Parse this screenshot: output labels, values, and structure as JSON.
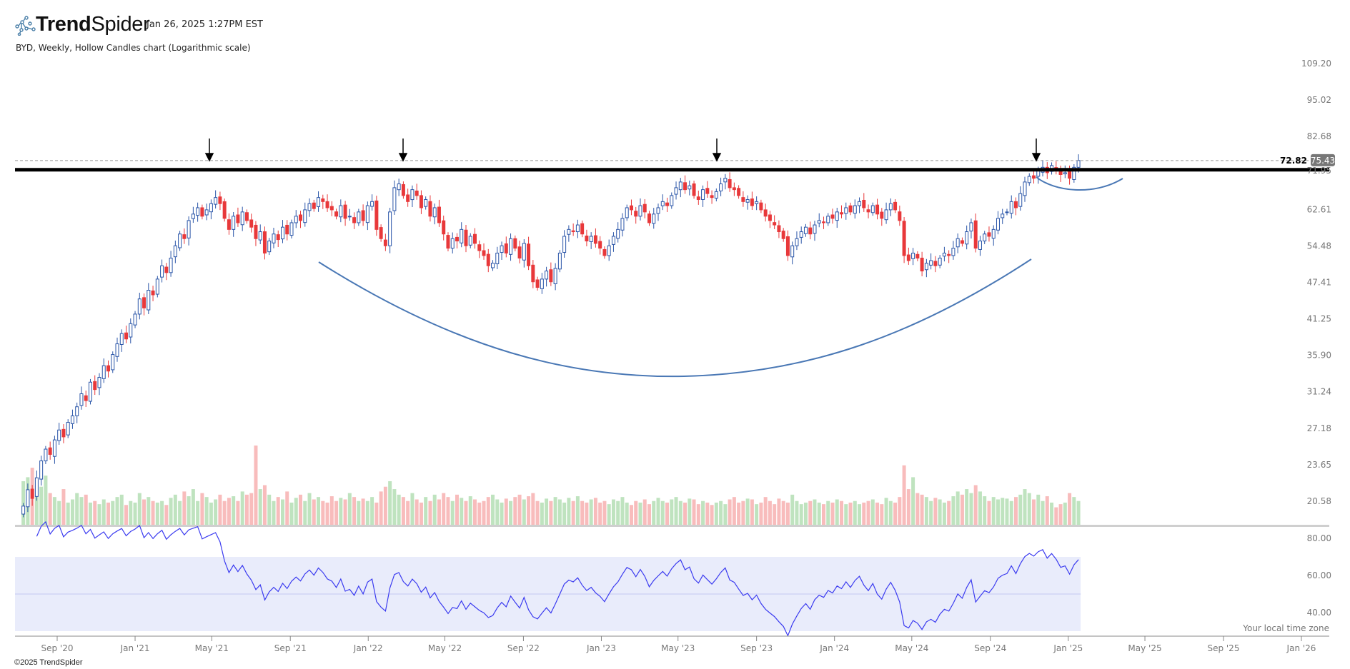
{
  "header": {
    "brand_bold": "Trend",
    "brand_light": "Spider",
    "timestamp": "Jan 26, 2025 1:27PM EST",
    "subtitle": "BYD, Weekly, Hollow Candles chart (Logarithmic scale)"
  },
  "footer": {
    "copyright": "©2025 TrendSpider",
    "timezone_note": "Your local time zone"
  },
  "colors": {
    "up_candle": "#2a55a8",
    "down_candle": "#e8383a",
    "up_volume": "#bfe3bf",
    "down_volume": "#f8bcbc",
    "rsi_line": "#3b3bf0",
    "rsi_band": "#e9ecfb",
    "cup_curve": "#4a78b5",
    "resistance_line": "#000000"
  },
  "chart_data": {
    "type": "candlestick",
    "symbol": "BYD",
    "period": "Weekly",
    "scale": "log",
    "y_tick_labels": [
      "109.20",
      "95.02",
      "82.68",
      "62.61",
      "54.48",
      "47.41",
      "41.25",
      "35.90",
      "31.24",
      "27.18",
      "23.65",
      "20.58"
    ],
    "hidden_y_tick_label": "71.95",
    "x_tick_labels": [
      "Sep '20",
      "Jan '21",
      "May '21",
      "Sep '21",
      "Jan '22",
      "May '22",
      "Sep '22",
      "Jan '23",
      "May '23",
      "Sep '23",
      "Jan '24",
      "May '24",
      "Sep '24",
      "Jan '25",
      "May '25",
      "Sep '25",
      "Jan '26"
    ],
    "last_price": "75.43",
    "resistance_level": "72.82",
    "resistance_value": 72.82,
    "annotations": [
      "down-arrow May '21",
      "down-arrow Feb '22",
      "down-arrow Jul '23",
      "down-arrow Nov '24",
      "cup curve",
      "handle curve"
    ],
    "closes": [
      20.2,
      21.5,
      20.8,
      22.5,
      24.0,
      25.1,
      24.6,
      26.0,
      27.0,
      26.3,
      27.8,
      28.5,
      29.5,
      31.0,
      30.2,
      32.4,
      31.5,
      33.0,
      34.5,
      33.8,
      36.0,
      37.5,
      39.0,
      38.2,
      40.5,
      42.0,
      44.5,
      43.0,
      46.0,
      45.2,
      48.0,
      50.5,
      49.2,
      52.0,
      54.5,
      57.0,
      56.0,
      60.0,
      61.5,
      63.0,
      61.0,
      62.5,
      64.0,
      65.5,
      64.0,
      60.5,
      58.0,
      61.0,
      59.5,
      62.0,
      60.0,
      58.5,
      56.0,
      57.5,
      53.0,
      55.5,
      57.0,
      55.8,
      58.5,
      57.0,
      59.5,
      61.0,
      60.0,
      62.5,
      64.0,
      62.8,
      65.5,
      64.5,
      63.0,
      62.5,
      61.0,
      63.5,
      60.5,
      61.0,
      59.5,
      62.0,
      60.0,
      63.5,
      64.5,
      58.0,
      56.0,
      54.5,
      62.0,
      68.0,
      69.0,
      66.0,
      64.5,
      67.5,
      66.0,
      63.0,
      65.0,
      61.0,
      63.0,
      59.5,
      57.0,
      54.0,
      56.0,
      55.5,
      58.0,
      54.5,
      56.5,
      55.0,
      53.5,
      52.5,
      50.5,
      51.0,
      53.0,
      54.5,
      53.0,
      56.0,
      54.0,
      52.0,
      55.0,
      50.5,
      47.5,
      46.5,
      48.0,
      49.5,
      47.5,
      50.0,
      53.0,
      56.5,
      58.0,
      57.5,
      59.0,
      57.0,
      55.5,
      56.5,
      55.0,
      54.0,
      52.5,
      54.5,
      56.5,
      58.0,
      60.5,
      63.0,
      62.5,
      61.0,
      63.5,
      62.0,
      59.5,
      61.5,
      63.0,
      64.5,
      63.5,
      66.0,
      68.0,
      69.5,
      67.5,
      68.5,
      66.0,
      65.0,
      67.5,
      66.5,
      65.5,
      67.0,
      69.0,
      70.5,
      68.0,
      67.5,
      66.0,
      64.5,
      65.0,
      63.5,
      64.5,
      62.5,
      61.0,
      60.0,
      59.0,
      57.5,
      56.0,
      52.5,
      54.5,
      56.0,
      57.5,
      58.5,
      57.0,
      59.0,
      60.0,
      59.5,
      61.0,
      60.5,
      62.0,
      61.5,
      63.0,
      62.0,
      63.5,
      64.5,
      63.0,
      62.0,
      63.5,
      61.5,
      60.5,
      62.5,
      64.0,
      62.5,
      60.0,
      52.5,
      51.5,
      53.0,
      52.0,
      49.5,
      51.0,
      51.5,
      50.5,
      52.0,
      53.0,
      52.5,
      54.0,
      56.0,
      55.0,
      57.5,
      59.5,
      54.0,
      55.5,
      57.0,
      56.5,
      58.0,
      60.5,
      61.5,
      62.0,
      64.5,
      63.0,
      66.5,
      69.5,
      71.0,
      70.5,
      72.5,
      73.5,
      72.0,
      74.0,
      73.0,
      71.5,
      72.0,
      70.5,
      73.5,
      75.43
    ],
    "volumes": [
      55,
      60,
      72,
      50,
      48,
      62,
      40,
      35,
      30,
      45,
      28,
      32,
      40,
      35,
      38,
      28,
      30,
      26,
      32,
      28,
      30,
      35,
      38,
      25,
      30,
      28,
      40,
      32,
      35,
      30,
      28,
      30,
      25,
      34,
      38,
      30,
      42,
      36,
      45,
      30,
      40,
      35,
      28,
      32,
      38,
      30,
      34,
      36,
      30,
      42,
      38,
      40,
      100,
      45,
      50,
      38,
      30,
      35,
      32,
      42,
      28,
      34,
      38,
      30,
      40,
      32,
      35,
      30,
      28,
      36,
      30,
      34,
      32,
      40,
      35,
      30,
      33,
      30,
      35,
      28,
      42,
      48,
      55,
      45,
      38,
      35,
      30,
      40,
      32,
      28,
      35,
      30,
      38,
      32,
      40,
      35,
      30,
      38,
      34,
      30,
      36,
      32,
      28,
      30,
      35,
      38,
      32,
      28,
      33,
      30,
      35,
      38,
      32,
      36,
      40,
      30,
      28,
      33,
      30,
      35,
      32,
      28,
      34,
      30,
      36,
      30,
      28,
      32,
      34,
      28,
      30,
      26,
      32,
      30,
      35,
      28,
      25,
      30,
      28,
      32,
      26,
      30,
      34,
      30,
      28,
      32,
      35,
      30,
      28,
      33,
      32,
      26,
      30,
      28,
      25,
      28,
      30,
      26,
      32,
      35,
      28,
      30,
      33,
      32,
      26,
      28,
      35,
      30,
      26,
      33,
      30,
      28,
      38,
      30,
      26,
      28,
      30,
      32,
      28,
      26,
      30,
      28,
      32,
      30,
      26,
      28,
      30,
      26,
      28,
      30,
      32,
      28,
      26,
      34,
      30,
      28,
      35,
      75,
      45,
      60,
      40,
      38,
      35,
      30,
      34,
      32,
      28,
      30,
      36,
      42,
      38,
      45,
      40,
      50,
      42,
      36,
      30,
      35,
      32,
      34,
      33,
      30,
      35,
      38,
      45,
      40,
      32,
      38,
      30,
      36,
      28,
      22,
      26,
      28,
      40,
      35,
      30
    ],
    "rsi": {
      "period": 14,
      "tick_labels": [
        "80.00",
        "60.00",
        "40.00"
      ],
      "band": [
        30,
        70
      ],
      "midline": 50
    }
  }
}
